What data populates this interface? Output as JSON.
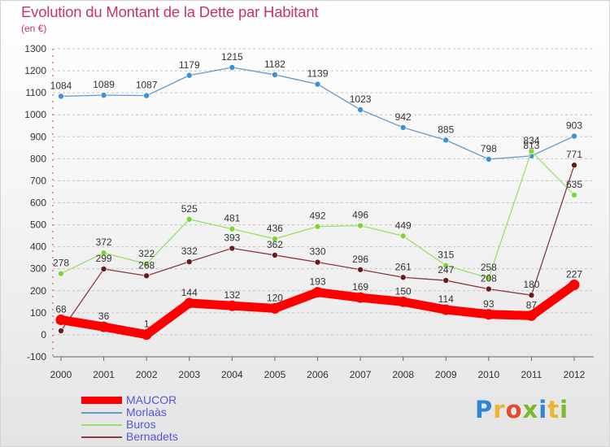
{
  "header": {
    "title": "Evolution du Montant de la Dette par Habitant",
    "unit": "(en €)"
  },
  "logo": {
    "text": "Proxiti",
    "letter_colors": [
      "#2f87d4",
      "#e9b72f",
      "#e14a2a",
      "#7ab82e",
      "#2f87d4",
      "#e9b72f",
      "#7ab82e"
    ]
  },
  "chart_data": {
    "type": "line",
    "title": "Evolution du Montant de la Dette par Habitant",
    "subtitle": "(en €)",
    "xlabel": "",
    "ylabel": "",
    "ylim": [
      -100,
      1300
    ],
    "yticks": [
      -100,
      0,
      100,
      200,
      300,
      400,
      500,
      600,
      700,
      800,
      900,
      1000,
      1100,
      1200,
      1300
    ],
    "grid": "horizontal dashed",
    "legend_position": "bottom-left",
    "x": [
      2000,
      2001,
      2002,
      2003,
      2004,
      2005,
      2006,
      2007,
      2008,
      2009,
      2010,
      2011,
      2012
    ],
    "series": [
      {
        "name": "MAUCOR",
        "color": "#ff0000",
        "emphasis": true,
        "values": [
          68,
          36,
          1,
          144,
          132,
          120,
          193,
          169,
          150,
          114,
          93,
          87,
          227
        ]
      },
      {
        "name": "Morlaàs",
        "color": "#6699cc",
        "marker": "#3d8fd6",
        "values": [
          1084,
          1089,
          1087,
          1179,
          1215,
          1182,
          1139,
          1023,
          942,
          885,
          798,
          813,
          903
        ]
      },
      {
        "name": "Buros",
        "color": "#99e066",
        "marker": "#7dd33c",
        "values": [
          278,
          372,
          322,
          525,
          481,
          436,
          492,
          496,
          449,
          315,
          258,
          834,
          635
        ]
      },
      {
        "name": "Bernadets",
        "color": "#8a3a3a",
        "marker": "#6b1a1a",
        "values": [
          18,
          299,
          268,
          332,
          393,
          362,
          330,
          296,
          261,
          247,
          208,
          180,
          771
        ]
      }
    ]
  }
}
